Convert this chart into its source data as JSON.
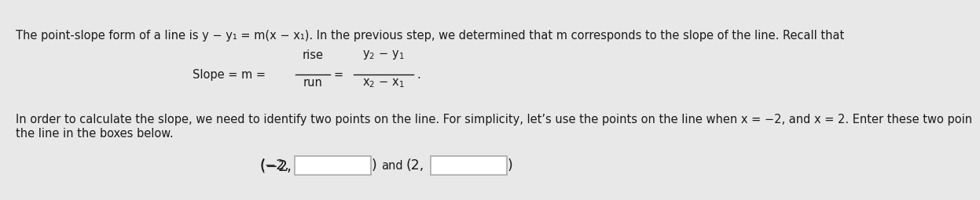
{
  "bg_color": "#e8e8e8",
  "text_color": "#1a1a1a",
  "line1": "The point-slope form of a line is y − y₁ = m(x − x₁). In the previous step, we determined that m corresponds to the slope of the line. Recall that",
  "line3": "In order to calculate the slope, we need to identify two points on the line. For simplicity, let’s use the points on the line when x = −2, and x = 2. Enter these two poin",
  "line4": "the line in the boxes below.",
  "font_size_main": 10.5
}
